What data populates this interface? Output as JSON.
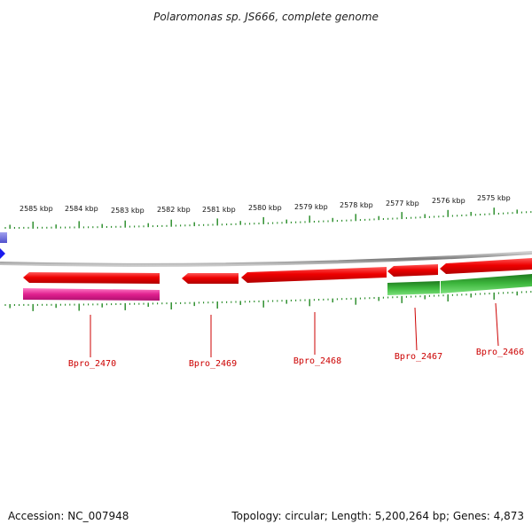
{
  "header": {
    "title": "Polaromonas sp. JS666, complete genome"
  },
  "footer": {
    "accession": "Accession: NC_007948",
    "summary": "Topology: circular; Length: 5,200,264 bp; Genes: 4,873"
  },
  "map": {
    "kbp_ticks": [
      "2585 kbp",
      "2584 kbp",
      "2583 kbp",
      "2582 kbp",
      "2581 kbp",
      "2580 kbp",
      "2579 kbp",
      "2578 kbp",
      "2577 kbp",
      "2576 kbp",
      "2575 kbp"
    ],
    "genes": [
      {
        "label": "Bpro_2470",
        "strand": "reverse"
      },
      {
        "label": "Bpro_2469",
        "strand": "reverse"
      },
      {
        "label": "Bpro_2468",
        "strand": "reverse"
      },
      {
        "label": "Bpro_2467",
        "strand": "reverse"
      },
      {
        "label": "Bpro_2466",
        "strand": "reverse"
      }
    ],
    "colors": {
      "gene": "#ee0000",
      "label": "#cc0000",
      "tick": "#228822",
      "backbone": "#888888",
      "feature_magenta": "#e0208f",
      "feature_green": "#2a9a2a",
      "feature_blue": "#1a1aee"
    }
  }
}
